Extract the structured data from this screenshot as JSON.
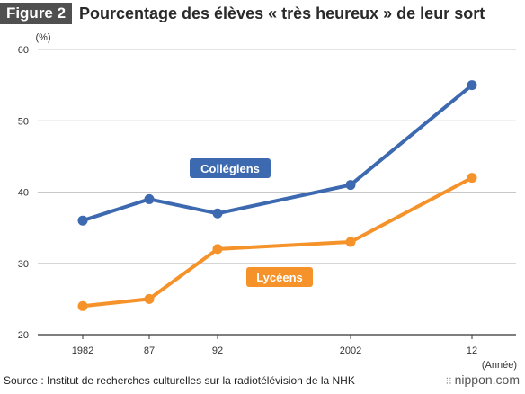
{
  "header": {
    "figure_label": "Figure 2",
    "title": "Pourcentage des élèves « très heureux » de leur sort"
  },
  "chart_data": {
    "type": "line",
    "title": "Pourcentage des élèves « très heureux » de leur sort",
    "ylabel": "(%)",
    "xlabel": "(Année)",
    "ylim": [
      20,
      60
    ],
    "yticks": [
      20,
      30,
      40,
      50,
      60
    ],
    "x": [
      1982,
      1987,
      1992,
      2002,
      2012
    ],
    "xtick_labels": [
      "1982",
      "87",
      "92",
      "2002",
      "12"
    ],
    "grid": true,
    "series": [
      {
        "name": "Collégiens",
        "color": "#3c69b0",
        "values": [
          36,
          39,
          37,
          41,
          55
        ]
      },
      {
        "name": "Lycéens",
        "color": "#f5922a",
        "values": [
          24,
          25,
          32,
          33,
          42
        ]
      }
    ]
  },
  "footer": {
    "source": "Source : Institut de recherches culturelles sur la radiotélévision de la NHK",
    "brand": "nippon.com",
    "brand_icon": "dots-icon"
  }
}
